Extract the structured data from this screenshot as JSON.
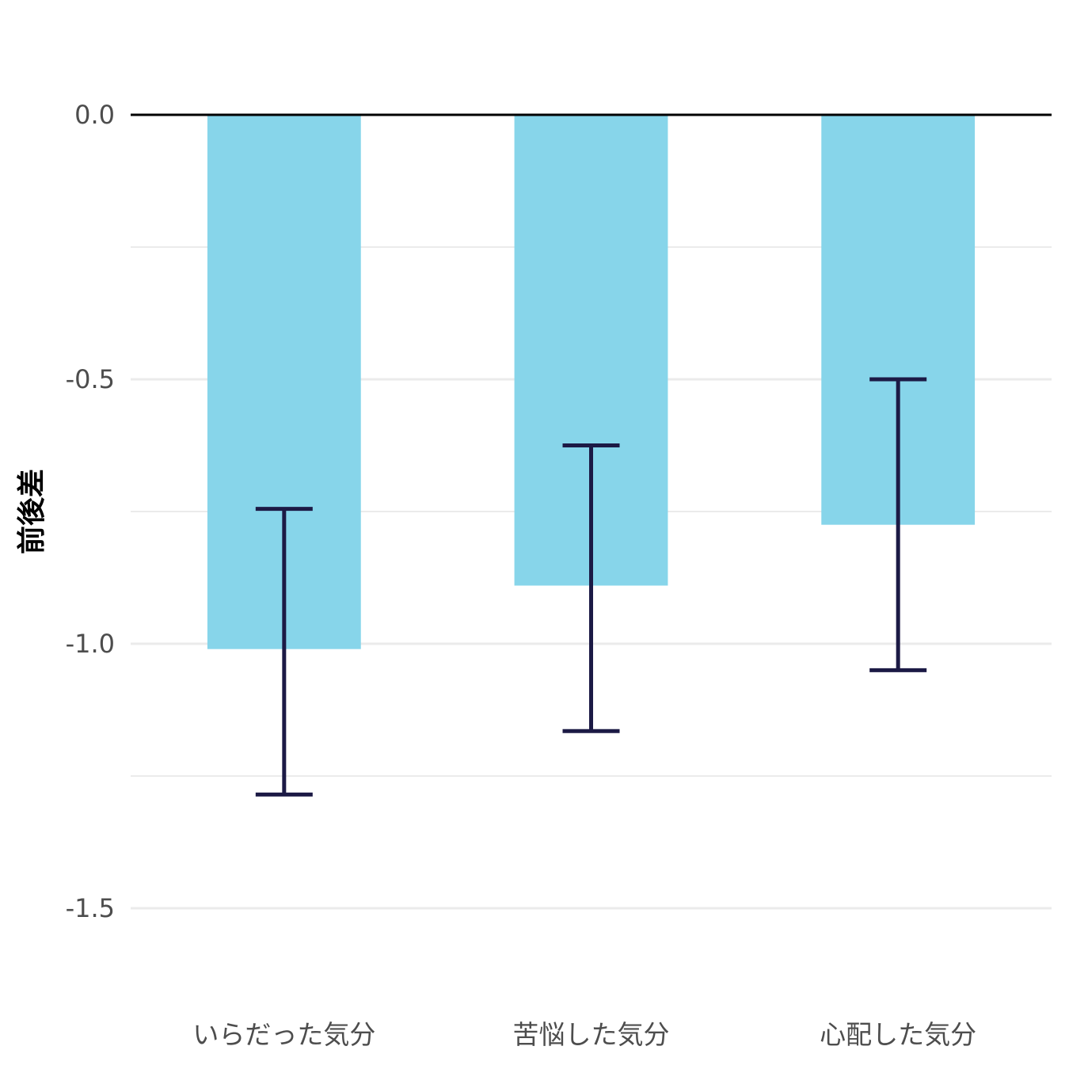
{
  "chart_data": {
    "type": "bar",
    "title": "",
    "xlabel": "",
    "ylabel": "前後差",
    "categories": [
      "いらだった気分",
      "苦悩した気分",
      "心配した気分"
    ],
    "values": [
      -1.01,
      -0.89,
      -0.775
    ],
    "error_low": [
      -1.285,
      -1.165,
      -1.05
    ],
    "error_high": [
      -0.745,
      -0.625,
      -0.5
    ],
    "ylim": [
      -1.7,
      0.13
    ],
    "yticks": [
      0.0,
      -0.5,
      -1.0,
      -1.5
    ],
    "ytick_labels": [
      "0.0",
      "-0.5",
      "-1.0",
      "-1.5"
    ],
    "grid": true,
    "legend": "none",
    "bar_color": "#87d5ea",
    "error_color": "#1c1a45",
    "zero_line_color": "#000000",
    "grid_color": "#ebebeb"
  }
}
